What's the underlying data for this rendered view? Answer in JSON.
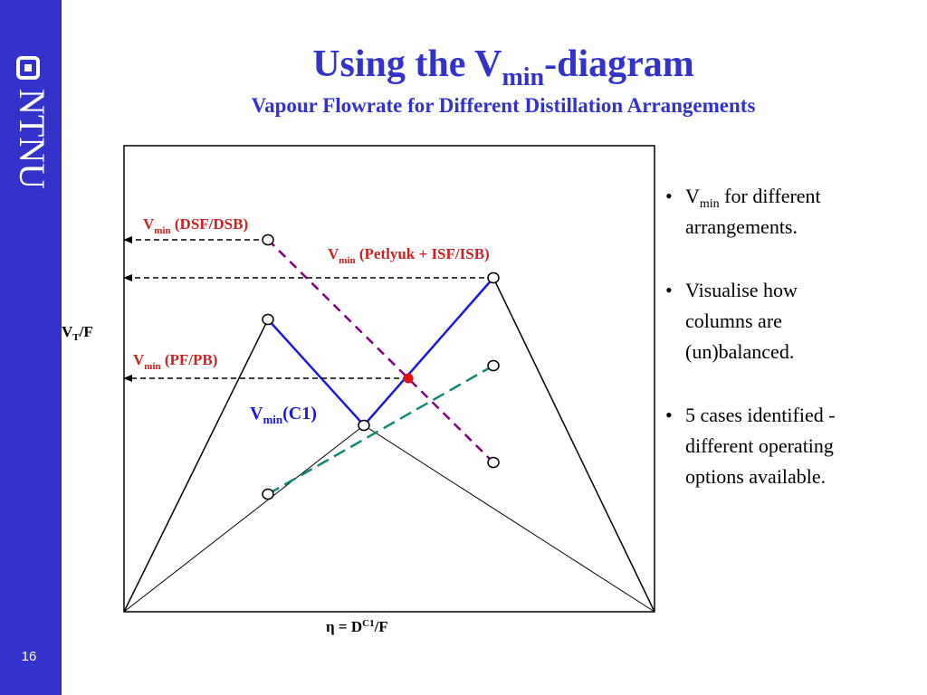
{
  "sidebar": {
    "logo": "NTNU",
    "page_number": "16"
  },
  "header": {
    "title": [
      "Using the V",
      "min",
      "-diagram"
    ],
    "subtitle": "Vapour Flowrate for Different Distillation Arrangements"
  },
  "diagram": {
    "labels": [
      [
        "V",
        "min",
        " (DSF/DSB)"
      ],
      [
        "V",
        "min",
        " (Petlyuk + ISF/ISB)"
      ],
      [
        "V",
        "min",
        " (PF/PB)"
      ],
      [
        "V",
        "min",
        "(C1)"
      ]
    ],
    "y_axis_label": [
      "V",
      "T",
      "/F"
    ],
    "x_axis_label": [
      "η = D",
      "C1",
      "/F"
    ]
  },
  "bullets": [
    [
      "V",
      "min",
      " for different",
      "arrangements."
    ],
    [
      "Visualise how",
      "columns are",
      "(un)balanced."
    ],
    [
      "5 cases identified -",
      "different operating",
      "options available."
    ]
  ]
}
